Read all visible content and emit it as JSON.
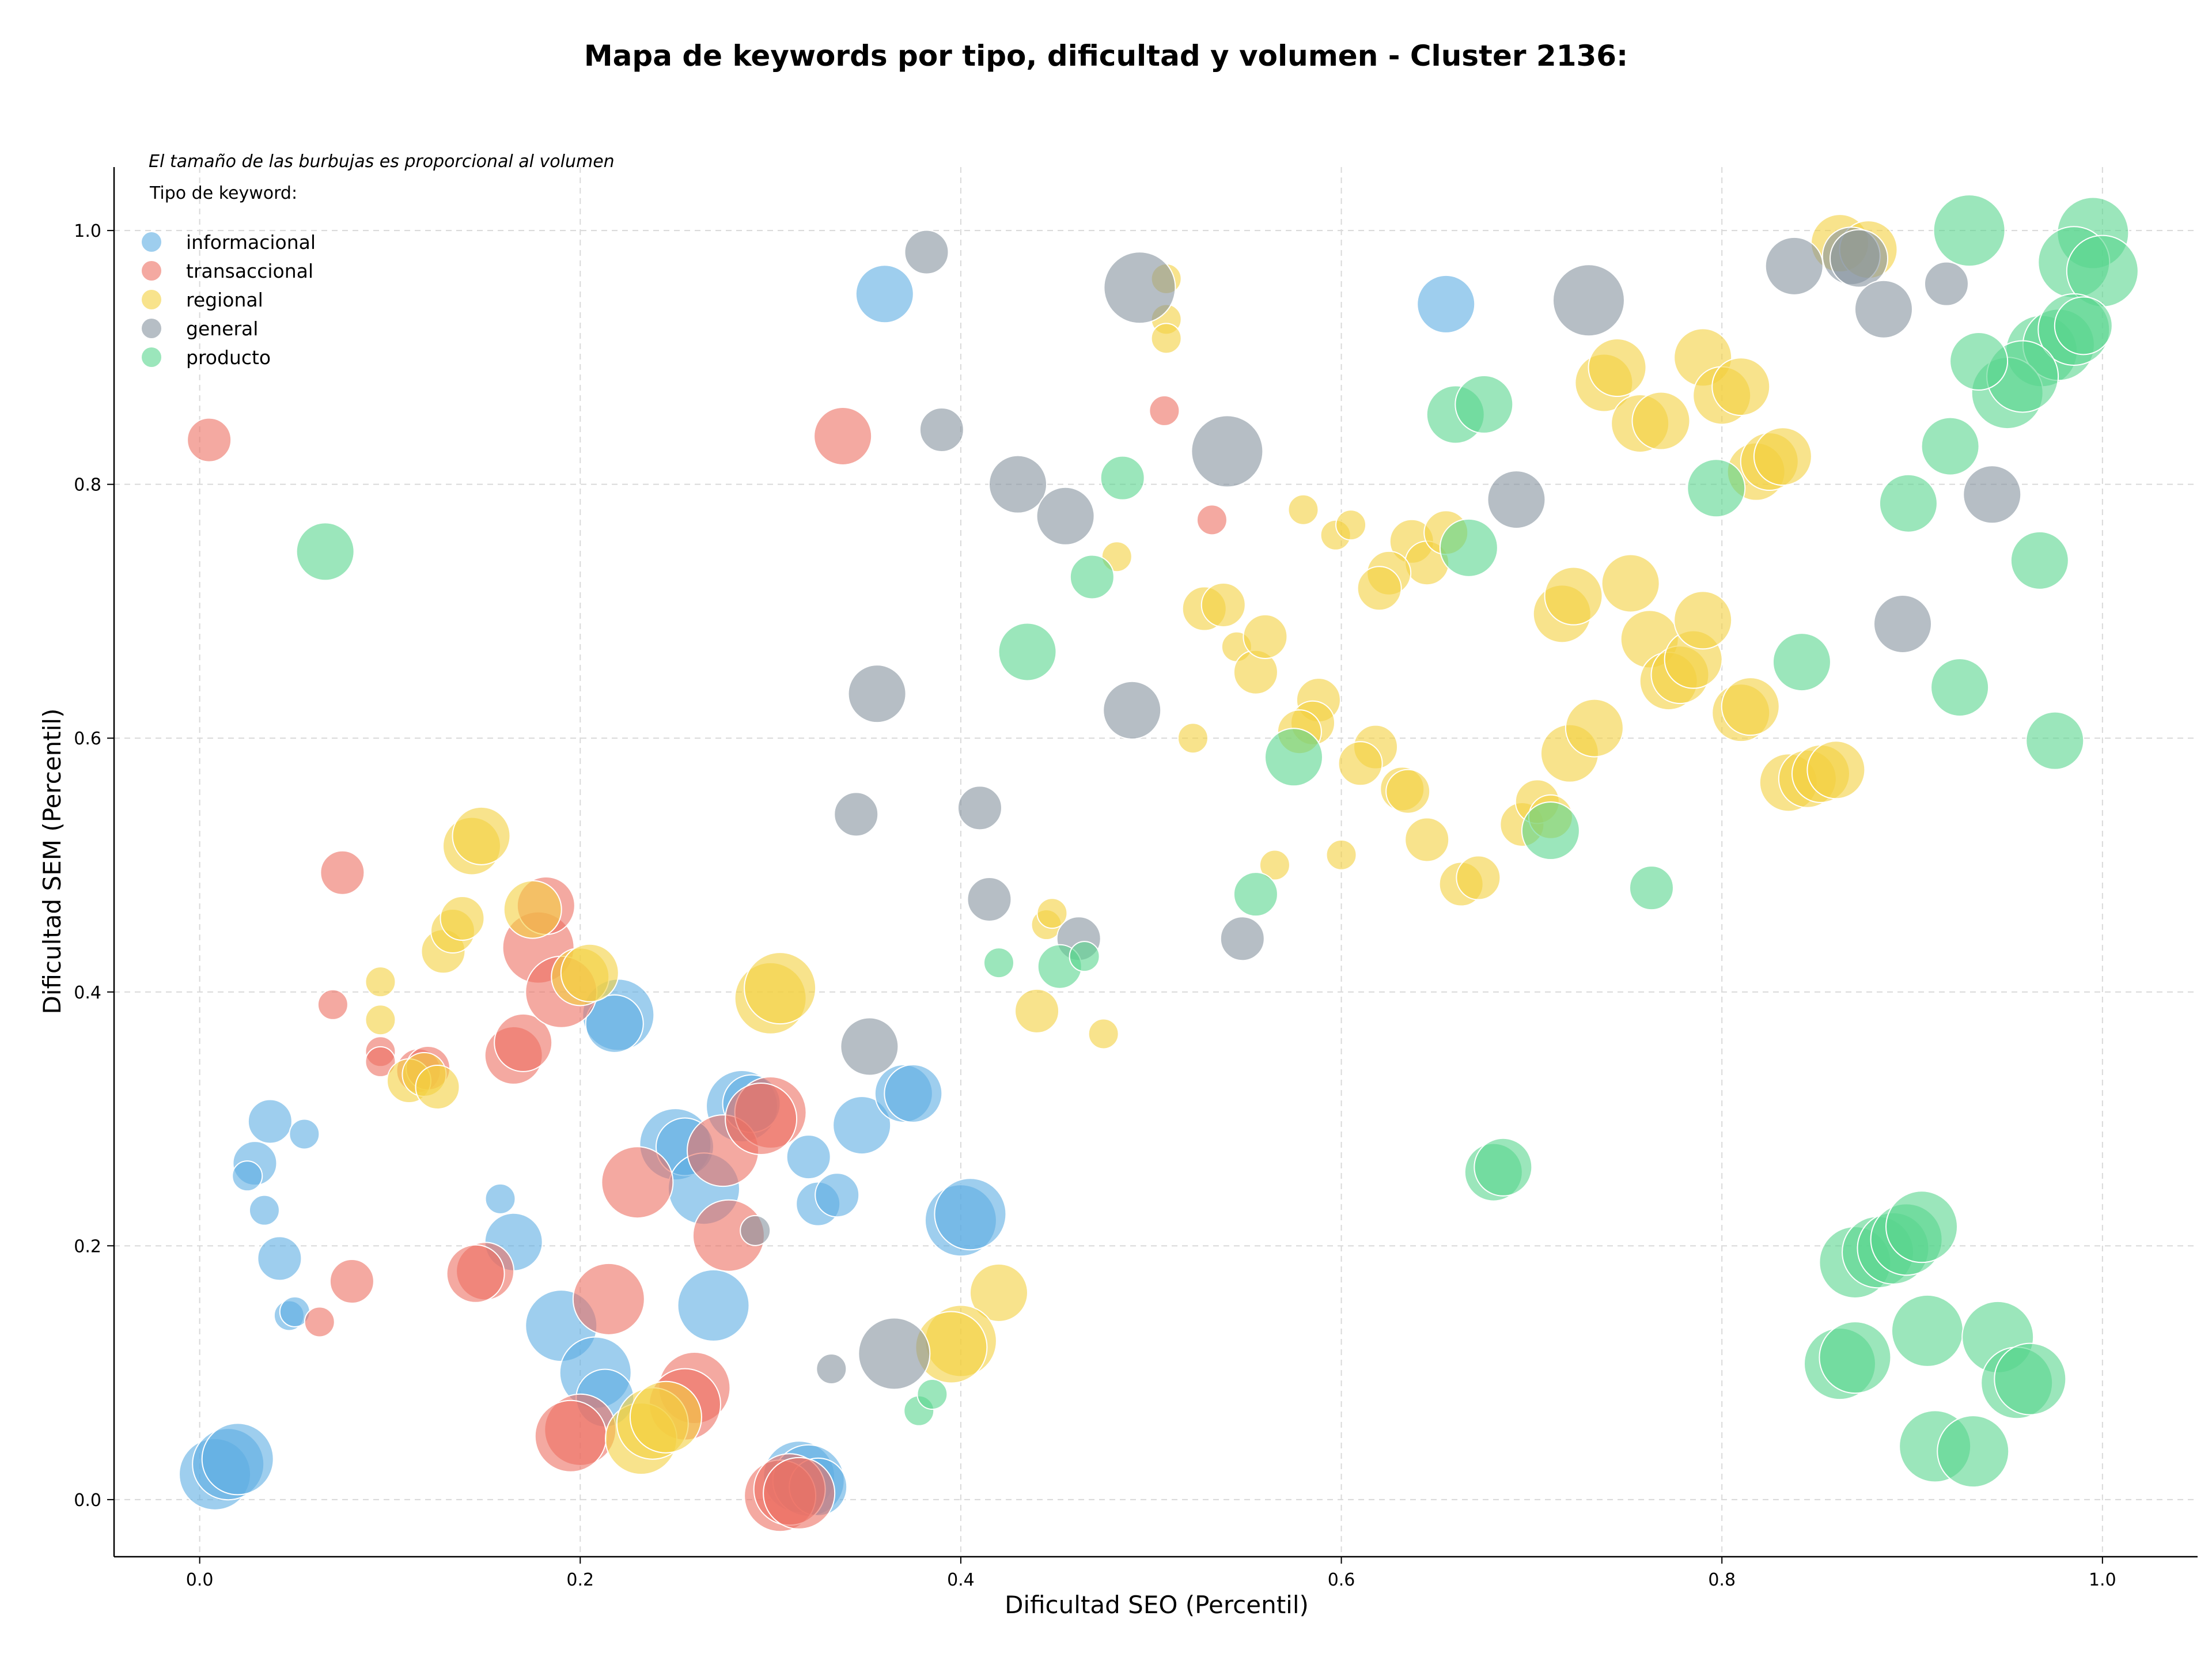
{
  "chart_data": {
    "type": "scatter",
    "title": "Mapa de keywords por tipo, dificultad y volumen - Cluster 2136:",
    "xlabel": "Dificultad SEO (Percentil)",
    "ylabel": "Dificultad SEM (Percentil)",
    "note": "El tamaño de las burbujas es proporcional al volumen",
    "legend_title": "Tipo de keyword:",
    "legend_position": "top-left",
    "grid": true,
    "xlim": [
      -0.045,
      1.05
    ],
    "ylim": [
      -0.045,
      1.05
    ],
    "xticks": [
      "0.0",
      "0.2",
      "0.4",
      "0.6",
      "0.8",
      "1.0"
    ],
    "yticks": [
      "0.0",
      "0.2",
      "0.4",
      "0.6",
      "0.8",
      "1.0"
    ],
    "series": [
      {
        "name": "informacional",
        "color": "#5DADE2",
        "points": [
          [
            0.36,
            0.95,
            3
          ],
          [
            0.655,
            0.942,
            3
          ],
          [
            0.22,
            0.382,
            4
          ],
          [
            0.218,
            0.375,
            3
          ],
          [
            0.037,
            0.298,
            2
          ],
          [
            0.055,
            0.288,
            1
          ],
          [
            0.029,
            0.265,
            2
          ],
          [
            0.025,
            0.255,
            1
          ],
          [
            0.034,
            0.228,
            1
          ],
          [
            0.042,
            0.19,
            2
          ],
          [
            0.047,
            0.145,
            1
          ],
          [
            0.05,
            0.148,
            1
          ],
          [
            0.158,
            0.237,
            1
          ],
          [
            0.165,
            0.203,
            3
          ],
          [
            0.19,
            0.137,
            4
          ],
          [
            0.208,
            0.1,
            4
          ],
          [
            0.213,
            0.08,
            3
          ],
          [
            0.25,
            0.28,
            4
          ],
          [
            0.255,
            0.278,
            3
          ],
          [
            0.265,
            0.245,
            4
          ],
          [
            0.27,
            0.153,
            4
          ],
          [
            0.285,
            0.31,
            4
          ],
          [
            0.29,
            0.312,
            3
          ],
          [
            0.32,
            0.27,
            2
          ],
          [
            0.325,
            0.233,
            2
          ],
          [
            0.335,
            0.24,
            2
          ],
          [
            0.348,
            0.295,
            3
          ],
          [
            0.37,
            0.32,
            3
          ],
          [
            0.375,
            0.32,
            3
          ],
          [
            0.4,
            0.22,
            4
          ],
          [
            0.405,
            0.225,
            4
          ],
          [
            0.008,
            0.02,
            4
          ],
          [
            0.015,
            0.028,
            4
          ],
          [
            0.02,
            0.032,
            4
          ],
          [
            0.315,
            0.018,
            4
          ],
          [
            0.32,
            0.015,
            4
          ],
          [
            0.325,
            0.01,
            3
          ]
        ]
      },
      {
        "name": "transaccional",
        "color": "#EC7063",
        "points": [
          [
            0.005,
            0.835,
            2
          ],
          [
            0.338,
            0.838,
            3
          ],
          [
            0.532,
            0.772,
            1
          ],
          [
            0.507,
            0.858,
            1
          ],
          [
            0.075,
            0.494,
            2
          ],
          [
            0.07,
            0.39,
            1
          ],
          [
            0.095,
            0.353,
            1
          ],
          [
            0.095,
            0.345,
            1
          ],
          [
            0.115,
            0.338,
            2
          ],
          [
            0.12,
            0.34,
            2
          ],
          [
            0.08,
            0.172,
            2
          ],
          [
            0.063,
            0.14,
            1
          ],
          [
            0.15,
            0.18,
            3
          ],
          [
            0.145,
            0.178,
            3
          ],
          [
            0.165,
            0.35,
            3
          ],
          [
            0.17,
            0.36,
            3
          ],
          [
            0.178,
            0.435,
            4
          ],
          [
            0.182,
            0.468,
            3
          ],
          [
            0.19,
            0.4,
            4
          ],
          [
            0.215,
            0.158,
            4
          ],
          [
            0.23,
            0.25,
            4
          ],
          [
            0.2,
            0.055,
            4
          ],
          [
            0.195,
            0.05,
            4
          ],
          [
            0.26,
            0.088,
            4
          ],
          [
            0.255,
            0.075,
            4
          ],
          [
            0.275,
            0.275,
            4
          ],
          [
            0.278,
            0.208,
            4
          ],
          [
            0.3,
            0.305,
            4
          ],
          [
            0.295,
            0.3,
            4
          ],
          [
            0.305,
            0.003,
            4
          ],
          [
            0.31,
            0.008,
            4
          ],
          [
            0.315,
            0.005,
            4
          ]
        ]
      },
      {
        "name": "regional",
        "color": "#F4D03F",
        "points": [
          [
            0.508,
            0.962,
            1
          ],
          [
            0.508,
            0.93,
            1
          ],
          [
            0.508,
            0.915,
            1
          ],
          [
            0.862,
            0.99,
            3
          ],
          [
            0.877,
            0.985,
            3
          ],
          [
            0.738,
            0.88,
            3
          ],
          [
            0.745,
            0.892,
            3
          ],
          [
            0.757,
            0.848,
            3
          ],
          [
            0.768,
            0.85,
            3
          ],
          [
            0.79,
            0.9,
            3
          ],
          [
            0.8,
            0.87,
            3
          ],
          [
            0.81,
            0.877,
            3
          ],
          [
            0.818,
            0.81,
            3
          ],
          [
            0.825,
            0.818,
            3
          ],
          [
            0.832,
            0.822,
            3
          ],
          [
            0.58,
            0.78,
            1
          ],
          [
            0.597,
            0.76,
            1
          ],
          [
            0.605,
            0.768,
            1
          ],
          [
            0.637,
            0.755,
            2
          ],
          [
            0.645,
            0.738,
            2
          ],
          [
            0.655,
            0.762,
            2
          ],
          [
            0.625,
            0.73,
            2
          ],
          [
            0.62,
            0.718,
            2
          ],
          [
            0.528,
            0.702,
            2
          ],
          [
            0.538,
            0.705,
            2
          ],
          [
            0.545,
            0.672,
            1
          ],
          [
            0.555,
            0.652,
            2
          ],
          [
            0.56,
            0.68,
            2
          ],
          [
            0.482,
            0.743,
            1
          ],
          [
            0.522,
            0.6,
            1
          ],
          [
            0.588,
            0.63,
            2
          ],
          [
            0.585,
            0.612,
            2
          ],
          [
            0.578,
            0.605,
            2
          ],
          [
            0.618,
            0.593,
            2
          ],
          [
            0.61,
            0.58,
            2
          ],
          [
            0.632,
            0.56,
            2
          ],
          [
            0.635,
            0.558,
            2
          ],
          [
            0.645,
            0.52,
            2
          ],
          [
            0.663,
            0.485,
            2
          ],
          [
            0.672,
            0.49,
            2
          ],
          [
            0.565,
            0.5,
            1
          ],
          [
            0.6,
            0.508,
            1
          ],
          [
            0.716,
            0.698,
            3
          ],
          [
            0.722,
            0.712,
            3
          ],
          [
            0.752,
            0.722,
            3
          ],
          [
            0.762,
            0.678,
            3
          ],
          [
            0.772,
            0.645,
            3
          ],
          [
            0.778,
            0.65,
            3
          ],
          [
            0.785,
            0.662,
            3
          ],
          [
            0.79,
            0.693,
            3
          ],
          [
            0.72,
            0.588,
            3
          ],
          [
            0.733,
            0.608,
            3
          ],
          [
            0.695,
            0.532,
            2
          ],
          [
            0.703,
            0.55,
            2
          ],
          [
            0.71,
            0.538,
            2
          ],
          [
            0.81,
            0.62,
            3
          ],
          [
            0.815,
            0.625,
            3
          ],
          [
            0.835,
            0.565,
            3
          ],
          [
            0.845,
            0.568,
            3
          ],
          [
            0.852,
            0.572,
            3
          ],
          [
            0.86,
            0.575,
            3
          ],
          [
            0.44,
            0.385,
            2
          ],
          [
            0.445,
            0.453,
            1
          ],
          [
            0.448,
            0.462,
            1
          ],
          [
            0.475,
            0.367,
            1
          ],
          [
            0.42,
            0.163,
            3
          ],
          [
            0.4,
            0.125,
            4
          ],
          [
            0.395,
            0.12,
            4
          ],
          [
            0.3,
            0.395,
            4
          ],
          [
            0.305,
            0.403,
            4
          ],
          [
            0.095,
            0.408,
            1
          ],
          [
            0.095,
            0.378,
            1
          ],
          [
            0.11,
            0.33,
            2
          ],
          [
            0.118,
            0.335,
            2
          ],
          [
            0.125,
            0.325,
            2
          ],
          [
            0.128,
            0.432,
            2
          ],
          [
            0.133,
            0.448,
            2
          ],
          [
            0.138,
            0.458,
            2
          ],
          [
            0.143,
            0.515,
            3
          ],
          [
            0.148,
            0.523,
            3
          ],
          [
            0.175,
            0.465,
            3
          ],
          [
            0.2,
            0.412,
            3
          ],
          [
            0.205,
            0.415,
            3
          ],
          [
            0.232,
            0.048,
            4
          ],
          [
            0.238,
            0.06,
            4
          ],
          [
            0.245,
            0.065,
            4
          ]
        ]
      },
      {
        "name": "general",
        "color": "#85929E",
        "points": [
          [
            0.382,
            0.983,
            2
          ],
          [
            0.494,
            0.955,
            4
          ],
          [
            0.73,
            0.945,
            4
          ],
          [
            0.838,
            0.972,
            3
          ],
          [
            0.868,
            0.98,
            3
          ],
          [
            0.872,
            0.978,
            3
          ],
          [
            0.885,
            0.938,
            3
          ],
          [
            0.918,
            0.958,
            2
          ],
          [
            0.39,
            0.843,
            2
          ],
          [
            0.43,
            0.8,
            3
          ],
          [
            0.455,
            0.775,
            3
          ],
          [
            0.54,
            0.826,
            4
          ],
          [
            0.692,
            0.788,
            3
          ],
          [
            0.942,
            0.792,
            3
          ],
          [
            0.356,
            0.635,
            3
          ],
          [
            0.49,
            0.622,
            3
          ],
          [
            0.895,
            0.69,
            3
          ],
          [
            0.345,
            0.54,
            2
          ],
          [
            0.41,
            0.545,
            2
          ],
          [
            0.415,
            0.473,
            2
          ],
          [
            0.462,
            0.442,
            2
          ],
          [
            0.548,
            0.442,
            2
          ],
          [
            0.352,
            0.357,
            3
          ],
          [
            0.292,
            0.212,
            1
          ],
          [
            0.332,
            0.103,
            1
          ],
          [
            0.365,
            0.115,
            4
          ]
        ]
      },
      {
        "name": "producto",
        "color": "#58D68D",
        "points": [
          [
            0.066,
            0.747,
            3
          ],
          [
            0.93,
            1.0,
            4
          ],
          [
            0.995,
            0.998,
            4
          ],
          [
            0.985,
            0.975,
            4
          ],
          [
            1.0,
            0.968,
            4
          ],
          [
            0.968,
            0.905,
            4
          ],
          [
            0.977,
            0.91,
            4
          ],
          [
            0.985,
            0.922,
            4
          ],
          [
            0.99,
            0.925,
            3
          ],
          [
            0.95,
            0.872,
            4
          ],
          [
            0.958,
            0.885,
            4
          ],
          [
            0.935,
            0.897,
            3
          ],
          [
            0.92,
            0.83,
            3
          ],
          [
            0.898,
            0.785,
            3
          ],
          [
            0.967,
            0.74,
            3
          ],
          [
            0.925,
            0.64,
            3
          ],
          [
            0.975,
            0.598,
            3
          ],
          [
            0.66,
            0.855,
            3
          ],
          [
            0.675,
            0.863,
            3
          ],
          [
            0.797,
            0.797,
            3
          ],
          [
            0.667,
            0.75,
            3
          ],
          [
            0.842,
            0.66,
            3
          ],
          [
            0.485,
            0.805,
            2
          ],
          [
            0.469,
            0.727,
            2
          ],
          [
            0.435,
            0.668,
            3
          ],
          [
            0.575,
            0.585,
            3
          ],
          [
            0.555,
            0.477,
            2
          ],
          [
            0.71,
            0.527,
            3
          ],
          [
            0.763,
            0.482,
            2
          ],
          [
            0.42,
            0.423,
            1
          ],
          [
            0.452,
            0.42,
            2
          ],
          [
            0.465,
            0.428,
            1
          ],
          [
            0.68,
            0.258,
            3
          ],
          [
            0.685,
            0.262,
            3
          ],
          [
            0.87,
            0.187,
            4
          ],
          [
            0.882,
            0.195,
            4
          ],
          [
            0.89,
            0.198,
            4
          ],
          [
            0.897,
            0.205,
            4
          ],
          [
            0.905,
            0.215,
            4
          ],
          [
            0.908,
            0.133,
            4
          ],
          [
            0.945,
            0.128,
            4
          ],
          [
            0.955,
            0.092,
            4
          ],
          [
            0.962,
            0.095,
            4
          ],
          [
            0.862,
            0.107,
            4
          ],
          [
            0.87,
            0.112,
            4
          ],
          [
            0.912,
            0.042,
            4
          ],
          [
            0.932,
            0.038,
            4
          ],
          [
            0.378,
            0.07,
            1
          ],
          [
            0.385,
            0.083,
            1
          ]
        ]
      }
    ]
  }
}
